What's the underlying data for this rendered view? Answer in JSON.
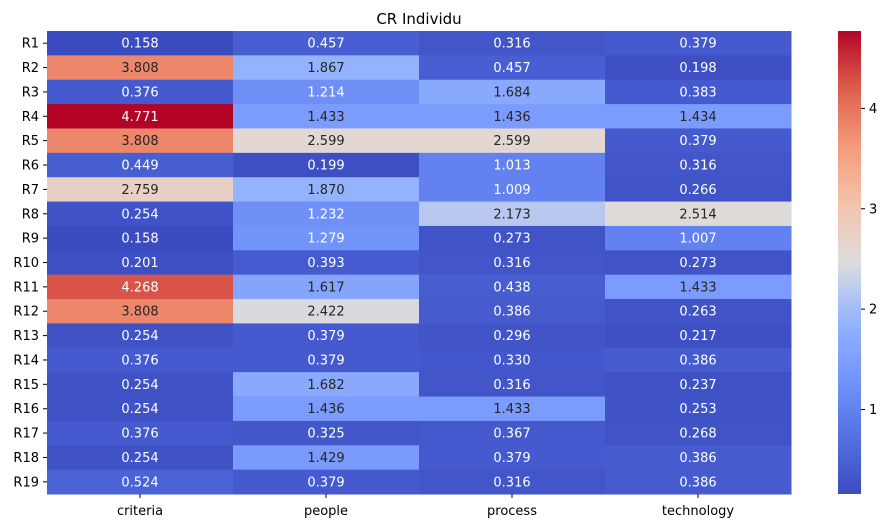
{
  "chart_data": {
    "type": "heatmap",
    "title": "CR Individu",
    "xlabel": "",
    "ylabel": "",
    "x_categories": [
      "criteria",
      "people",
      "process",
      "technology"
    ],
    "y_categories": [
      "R1",
      "R2",
      "R3",
      "R4",
      "R5",
      "R6",
      "R7",
      "R8",
      "R9",
      "R10",
      "R11",
      "R12",
      "R13",
      "R14",
      "R15",
      "R16",
      "R17",
      "R18",
      "R19"
    ],
    "values": [
      [
        0.158,
        0.457,
        0.316,
        0.379
      ],
      [
        3.808,
        1.867,
        0.457,
        0.198
      ],
      [
        0.376,
        1.214,
        1.684,
        0.383
      ],
      [
        4.771,
        1.433,
        1.436,
        1.434
      ],
      [
        3.808,
        2.599,
        2.599,
        0.379
      ],
      [
        0.449,
        0.199,
        1.013,
        0.316
      ],
      [
        2.759,
        1.87,
        1.009,
        0.266
      ],
      [
        0.254,
        1.232,
        2.173,
        2.514
      ],
      [
        0.158,
        1.279,
        0.273,
        1.007
      ],
      [
        0.201,
        0.393,
        0.316,
        0.273
      ],
      [
        4.268,
        1.617,
        0.438,
        1.433
      ],
      [
        3.808,
        2.422,
        0.386,
        0.263
      ],
      [
        0.254,
        0.379,
        0.296,
        0.217
      ],
      [
        0.376,
        0.379,
        0.33,
        0.386
      ],
      [
        0.254,
        1.682,
        0.316,
        0.237
      ],
      [
        0.254,
        1.436,
        1.433,
        0.253
      ],
      [
        0.376,
        0.325,
        0.367,
        0.268
      ],
      [
        0.254,
        1.429,
        0.379,
        0.386
      ],
      [
        0.524,
        0.379,
        0.316,
        0.386
      ]
    ],
    "value_format": "0.000",
    "colormap": "coolwarm",
    "color_range": [
      0.158,
      4.771
    ],
    "colorbar_ticks": [
      1,
      2,
      3,
      4
    ],
    "colorbar_position": "right",
    "annotated": true
  }
}
